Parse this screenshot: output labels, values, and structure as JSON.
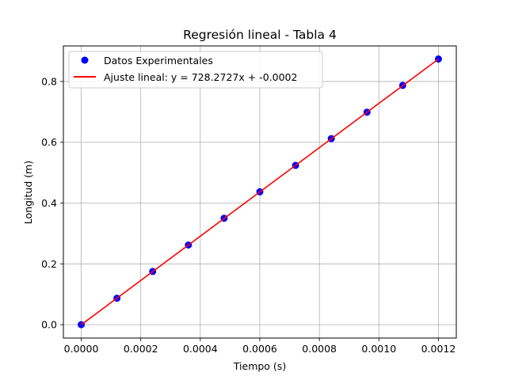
{
  "chart_data": {
    "type": "scatter",
    "title": "Regresión lineal - Tabla 4",
    "xlabel": "Tiempo (s)",
    "ylabel": "Longitud (m)",
    "xlim": [
      -6e-05,
      0.00126
    ],
    "ylim": [
      -0.044,
      0.917
    ],
    "x_ticks": [
      0.0,
      0.0002,
      0.0004,
      0.0006,
      0.0008,
      0.001,
      0.0012
    ],
    "x_tick_labels": [
      "0.0000",
      "0.0002",
      "0.0004",
      "0.0006",
      "0.0008",
      "0.0010",
      "0.0012"
    ],
    "y_ticks": [
      0.0,
      0.2,
      0.4,
      0.6,
      0.8
    ],
    "y_tick_labels": [
      "0.0",
      "0.2",
      "0.4",
      "0.6",
      "0.8"
    ],
    "grid": true,
    "legend_position": "top-left",
    "series": [
      {
        "name": "Datos Experimentales",
        "kind": "scatter",
        "color": "#0000ff",
        "x": [
          0.0,
          0.00012,
          0.00024,
          0.00036,
          0.00048,
          0.0006,
          0.00072,
          0.00084,
          0.00096,
          0.00108,
          0.0012
        ],
        "y": [
          0.0,
          0.087,
          0.175,
          0.262,
          0.35,
          0.437,
          0.524,
          0.612,
          0.699,
          0.787,
          0.874
        ]
      },
      {
        "name": "Ajuste lineal: y = 728.2727x + -0.0002",
        "kind": "line",
        "color": "#ff0000",
        "slope": 728.2727,
        "intercept": -0.0002,
        "x": [
          0.0,
          0.0012
        ]
      }
    ]
  }
}
